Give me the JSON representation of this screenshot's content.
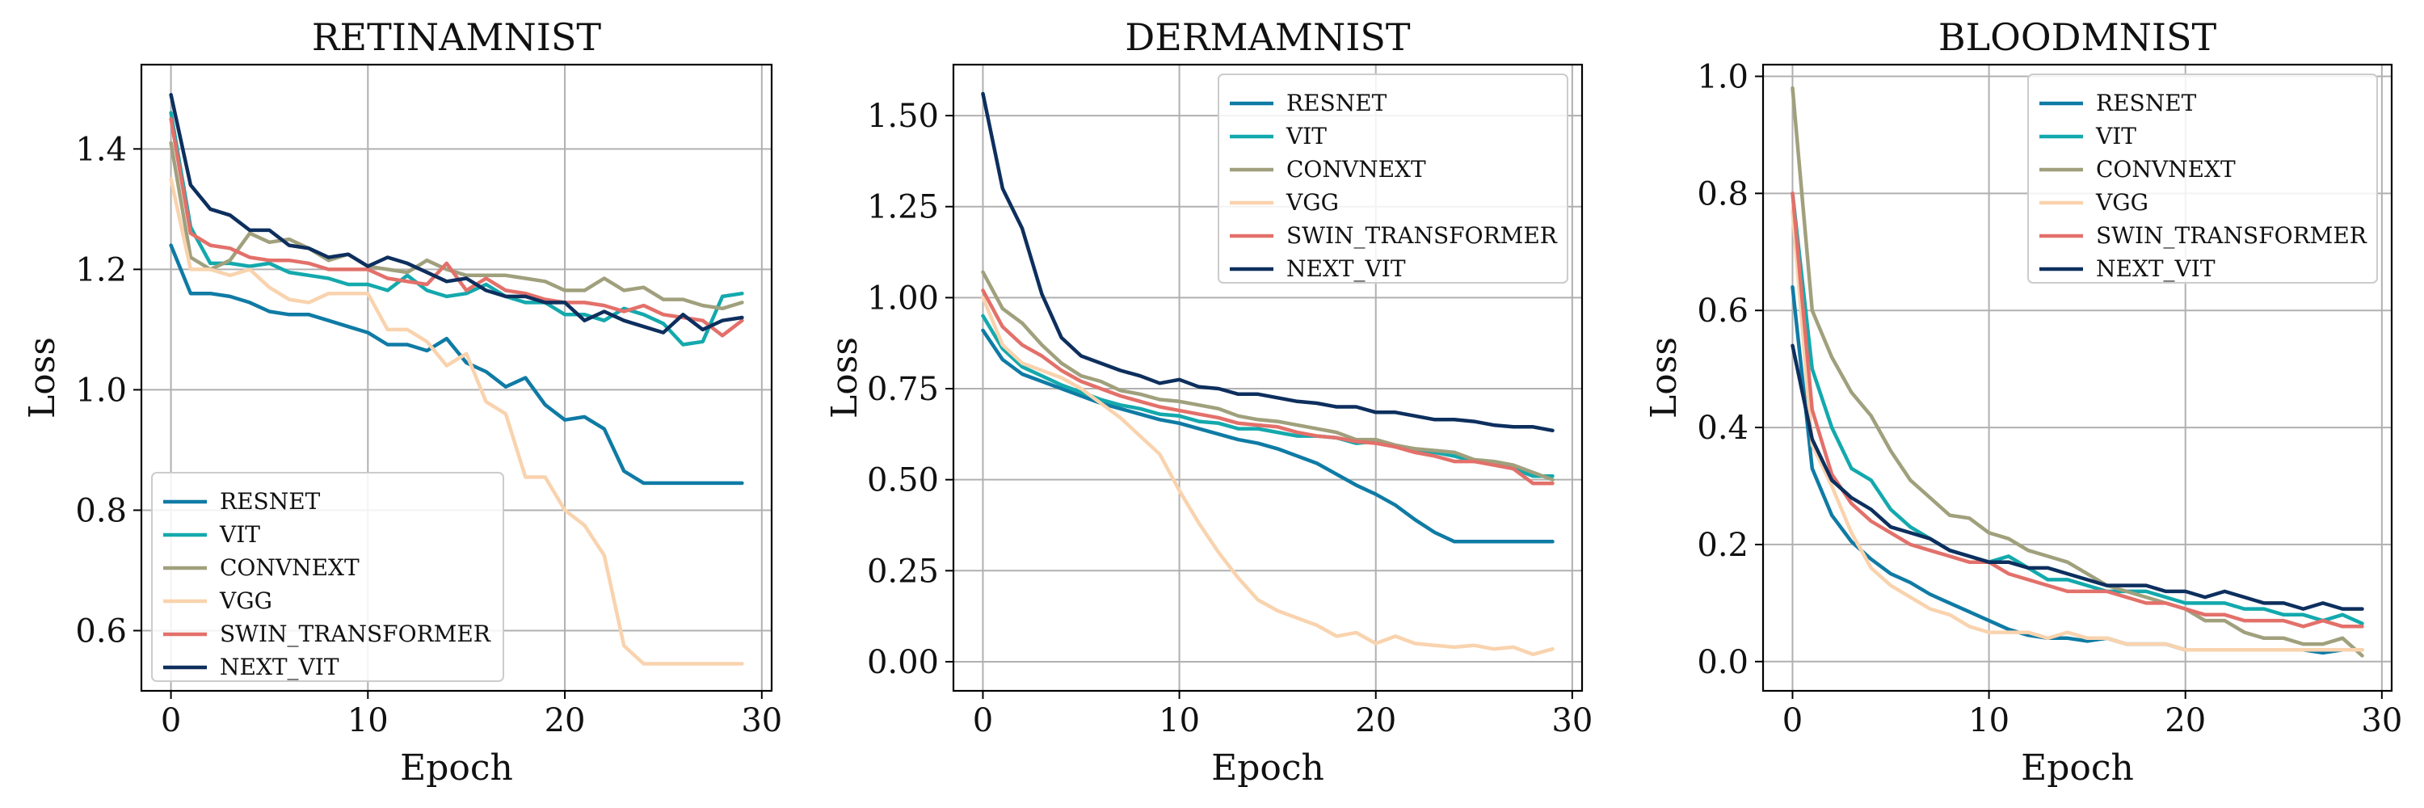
{
  "chart_data": [
    {
      "type": "line",
      "title": "RETINAMNIST",
      "xlabel": "Epoch",
      "ylabel": "Loss",
      "xlim": [
        -1.5,
        30.5
      ],
      "ylim": [
        0.5,
        1.54
      ],
      "xticks": [
        0,
        10,
        20,
        30
      ],
      "xtick_labels": [
        "0",
        "10",
        "20",
        "30"
      ],
      "yticks": [
        0.6,
        0.8,
        1.0,
        1.2,
        1.4
      ],
      "ytick_labels": [
        "0.6",
        "0.8",
        "1.0",
        "1.2",
        "1.4"
      ],
      "grid": true,
      "legend_position": "lower-left",
      "x": [
        0,
        1,
        2,
        3,
        4,
        5,
        6,
        7,
        8,
        9,
        10,
        11,
        12,
        13,
        14,
        15,
        16,
        17,
        18,
        19,
        20,
        21,
        22,
        23,
        24,
        25,
        26,
        27,
        28,
        29
      ],
      "series": [
        {
          "name": "RESNET",
          "color": "#0f7ba5",
          "values": [
            1.24,
            1.16,
            1.16,
            1.155,
            1.145,
            1.13,
            1.125,
            1.125,
            1.115,
            1.105,
            1.095,
            1.075,
            1.075,
            1.065,
            1.085,
            1.045,
            1.03,
            1.005,
            1.02,
            0.975,
            0.95,
            0.955,
            0.935,
            0.865,
            0.845,
            0.845,
            0.845,
            0.845,
            0.845,
            0.845
          ]
        },
        {
          "name": "VIT",
          "color": "#13a9ad",
          "values": [
            1.46,
            1.27,
            1.21,
            1.21,
            1.205,
            1.21,
            1.195,
            1.19,
            1.185,
            1.175,
            1.175,
            1.165,
            1.19,
            1.165,
            1.155,
            1.16,
            1.175,
            1.155,
            1.145,
            1.145,
            1.125,
            1.125,
            1.115,
            1.135,
            1.125,
            1.11,
            1.075,
            1.08,
            1.155,
            1.16
          ]
        },
        {
          "name": "CONVNEXT",
          "color": "#a0a07d",
          "values": [
            1.41,
            1.22,
            1.2,
            1.215,
            1.26,
            1.245,
            1.25,
            1.235,
            1.215,
            1.225,
            1.205,
            1.2,
            1.195,
            1.215,
            1.2,
            1.19,
            1.19,
            1.19,
            1.185,
            1.18,
            1.165,
            1.165,
            1.185,
            1.165,
            1.17,
            1.15,
            1.15,
            1.14,
            1.135,
            1.145
          ]
        },
        {
          "name": "VGG",
          "color": "#f9d3ae",
          "values": [
            1.35,
            1.2,
            1.2,
            1.19,
            1.2,
            1.17,
            1.15,
            1.145,
            1.16,
            1.16,
            1.16,
            1.1,
            1.1,
            1.08,
            1.04,
            1.06,
            0.98,
            0.96,
            0.855,
            0.855,
            0.8,
            0.775,
            0.725,
            0.575,
            0.545,
            0.545,
            0.545,
            0.545,
            0.545,
            0.545
          ]
        },
        {
          "name": "SWIN_TRANSFORMER",
          "color": "#e3706a",
          "values": [
            1.45,
            1.26,
            1.24,
            1.235,
            1.22,
            1.215,
            1.215,
            1.21,
            1.2,
            1.2,
            1.2,
            1.185,
            1.18,
            1.175,
            1.21,
            1.165,
            1.185,
            1.165,
            1.16,
            1.15,
            1.145,
            1.145,
            1.14,
            1.13,
            1.14,
            1.125,
            1.12,
            1.115,
            1.09,
            1.115
          ]
        },
        {
          "name": "NEXT_VIT",
          "color": "#0d2f5e",
          "values": [
            1.49,
            1.34,
            1.3,
            1.29,
            1.265,
            1.265,
            1.24,
            1.235,
            1.22,
            1.225,
            1.205,
            1.22,
            1.21,
            1.195,
            1.18,
            1.185,
            1.165,
            1.155,
            1.155,
            1.145,
            1.145,
            1.115,
            1.13,
            1.115,
            1.105,
            1.095,
            1.125,
            1.1,
            1.115,
            1.12
          ]
        }
      ]
    },
    {
      "type": "line",
      "title": "DERMAMNIST",
      "xlabel": "Epoch",
      "ylabel": "Loss",
      "xlim": [
        -1.5,
        30.5
      ],
      "ylim": [
        -0.08,
        1.64
      ],
      "xticks": [
        0,
        10,
        20,
        30
      ],
      "xtick_labels": [
        "0",
        "10",
        "20",
        "30"
      ],
      "yticks": [
        0.0,
        0.25,
        0.5,
        0.75,
        1.0,
        1.25,
        1.5
      ],
      "ytick_labels": [
        "0.00",
        "0.25",
        "0.50",
        "0.75",
        "1.00",
        "1.25",
        "1.50"
      ],
      "grid": true,
      "legend_position": "upper-right",
      "x": [
        0,
        1,
        2,
        3,
        4,
        5,
        6,
        7,
        8,
        9,
        10,
        11,
        12,
        13,
        14,
        15,
        16,
        17,
        18,
        19,
        20,
        21,
        22,
        23,
        24,
        25,
        26,
        27,
        28,
        29
      ],
      "series": [
        {
          "name": "RESNET",
          "color": "#0f7ba5",
          "values": [
            0.91,
            0.83,
            0.79,
            0.77,
            0.75,
            0.73,
            0.71,
            0.695,
            0.68,
            0.665,
            0.655,
            0.64,
            0.625,
            0.61,
            0.6,
            0.585,
            0.565,
            0.545,
            0.515,
            0.485,
            0.46,
            0.43,
            0.39,
            0.355,
            0.33,
            0.33,
            0.33,
            0.33,
            0.33,
            0.33
          ]
        },
        {
          "name": "VIT",
          "color": "#13a9ad",
          "values": [
            0.95,
            0.86,
            0.81,
            0.785,
            0.76,
            0.74,
            0.72,
            0.705,
            0.695,
            0.68,
            0.675,
            0.66,
            0.655,
            0.64,
            0.64,
            0.63,
            0.62,
            0.62,
            0.615,
            0.6,
            0.605,
            0.59,
            0.58,
            0.575,
            0.565,
            0.55,
            0.545,
            0.53,
            0.51,
            0.51
          ]
        },
        {
          "name": "CONVNEXT",
          "color": "#a0a07d",
          "values": [
            1.07,
            0.97,
            0.93,
            0.87,
            0.82,
            0.785,
            0.77,
            0.745,
            0.735,
            0.72,
            0.715,
            0.705,
            0.695,
            0.675,
            0.665,
            0.66,
            0.65,
            0.64,
            0.63,
            0.61,
            0.61,
            0.595,
            0.585,
            0.58,
            0.575,
            0.555,
            0.55,
            0.54,
            0.52,
            0.5
          ]
        },
        {
          "name": "VGG",
          "color": "#f9d3ae",
          "values": [
            1.0,
            0.87,
            0.82,
            0.8,
            0.78,
            0.75,
            0.71,
            0.67,
            0.62,
            0.57,
            0.47,
            0.38,
            0.3,
            0.23,
            0.17,
            0.14,
            0.12,
            0.1,
            0.07,
            0.08,
            0.05,
            0.07,
            0.05,
            0.045,
            0.04,
            0.045,
            0.035,
            0.04,
            0.02,
            0.035
          ]
        },
        {
          "name": "SWIN_TRANSFORMER",
          "color": "#e3706a",
          "values": [
            1.02,
            0.92,
            0.87,
            0.84,
            0.8,
            0.77,
            0.75,
            0.73,
            0.715,
            0.7,
            0.69,
            0.68,
            0.67,
            0.655,
            0.65,
            0.645,
            0.63,
            0.62,
            0.615,
            0.605,
            0.6,
            0.59,
            0.575,
            0.565,
            0.55,
            0.55,
            0.54,
            0.53,
            0.49,
            0.49
          ]
        },
        {
          "name": "NEXT_VIT",
          "color": "#0d2f5e",
          "values": [
            1.56,
            1.3,
            1.19,
            1.01,
            0.89,
            0.84,
            0.82,
            0.8,
            0.785,
            0.765,
            0.775,
            0.755,
            0.75,
            0.735,
            0.735,
            0.725,
            0.715,
            0.71,
            0.7,
            0.7,
            0.685,
            0.685,
            0.675,
            0.665,
            0.665,
            0.66,
            0.65,
            0.645,
            0.645,
            0.635
          ]
        }
      ]
    },
    {
      "type": "line",
      "title": "BLOODMNIST",
      "xlabel": "Epoch",
      "ylabel": "Loss",
      "xlim": [
        -1.5,
        30.5
      ],
      "ylim": [
        -0.05,
        1.02
      ],
      "xticks": [
        0,
        10,
        20,
        30
      ],
      "xtick_labels": [
        "0",
        "10",
        "20",
        "30"
      ],
      "yticks": [
        0.0,
        0.2,
        0.4,
        0.6,
        0.8,
        1.0
      ],
      "ytick_labels": [
        "0.0",
        "0.2",
        "0.4",
        "0.6",
        "0.8",
        "1.0"
      ],
      "grid": true,
      "legend_position": "upper-right",
      "x": [
        0,
        1,
        2,
        3,
        4,
        5,
        6,
        7,
        8,
        9,
        10,
        11,
        12,
        13,
        14,
        15,
        16,
        17,
        18,
        19,
        20,
        21,
        22,
        23,
        24,
        25,
        26,
        27,
        28,
        29
      ],
      "series": [
        {
          "name": "RESNET",
          "color": "#0f7ba5",
          "values": [
            0.64,
            0.33,
            0.25,
            0.205,
            0.175,
            0.15,
            0.135,
            0.115,
            0.1,
            0.085,
            0.07,
            0.055,
            0.045,
            0.04,
            0.04,
            0.035,
            0.04,
            0.03,
            0.03,
            0.03,
            0.02,
            0.02,
            0.02,
            0.02,
            0.02,
            0.02,
            0.02,
            0.015,
            0.02,
            0.02
          ]
        },
        {
          "name": "VIT",
          "color": "#13a9ad",
          "values": [
            0.8,
            0.5,
            0.4,
            0.33,
            0.31,
            0.26,
            0.23,
            0.21,
            0.19,
            0.18,
            0.17,
            0.18,
            0.16,
            0.14,
            0.14,
            0.13,
            0.12,
            0.12,
            0.12,
            0.11,
            0.1,
            0.1,
            0.1,
            0.09,
            0.09,
            0.08,
            0.08,
            0.07,
            0.08,
            0.065
          ]
        },
        {
          "name": "CONVNEXT",
          "color": "#a0a07d",
          "values": [
            0.98,
            0.6,
            0.52,
            0.46,
            0.42,
            0.36,
            0.31,
            0.28,
            0.25,
            0.245,
            0.22,
            0.21,
            0.19,
            0.18,
            0.17,
            0.15,
            0.13,
            0.12,
            0.11,
            0.1,
            0.09,
            0.07,
            0.07,
            0.05,
            0.04,
            0.04,
            0.03,
            0.03,
            0.04,
            0.01
          ]
        },
        {
          "name": "VGG",
          "color": "#f9d3ae",
          "values": [
            0.77,
            0.37,
            0.3,
            0.22,
            0.16,
            0.13,
            0.11,
            0.09,
            0.08,
            0.06,
            0.05,
            0.05,
            0.05,
            0.04,
            0.05,
            0.04,
            0.04,
            0.03,
            0.03,
            0.03,
            0.02,
            0.02,
            0.02,
            0.02,
            0.02,
            0.02,
            0.02,
            0.02,
            0.02,
            0.02
          ]
        },
        {
          "name": "SWIN_TRANSFORMER",
          "color": "#e3706a",
          "values": [
            0.8,
            0.43,
            0.32,
            0.27,
            0.24,
            0.22,
            0.2,
            0.19,
            0.18,
            0.17,
            0.17,
            0.15,
            0.14,
            0.13,
            0.12,
            0.12,
            0.12,
            0.11,
            0.1,
            0.1,
            0.09,
            0.08,
            0.08,
            0.07,
            0.07,
            0.07,
            0.06,
            0.07,
            0.06,
            0.06
          ]
        },
        {
          "name": "NEXT_VIT",
          "color": "#0d2f5e",
          "values": [
            0.54,
            0.38,
            0.31,
            0.28,
            0.26,
            0.23,
            0.22,
            0.21,
            0.19,
            0.18,
            0.17,
            0.17,
            0.16,
            0.16,
            0.15,
            0.14,
            0.13,
            0.13,
            0.13,
            0.12,
            0.12,
            0.11,
            0.12,
            0.11,
            0.1,
            0.1,
            0.09,
            0.1,
            0.09,
            0.09
          ]
        }
      ]
    }
  ]
}
